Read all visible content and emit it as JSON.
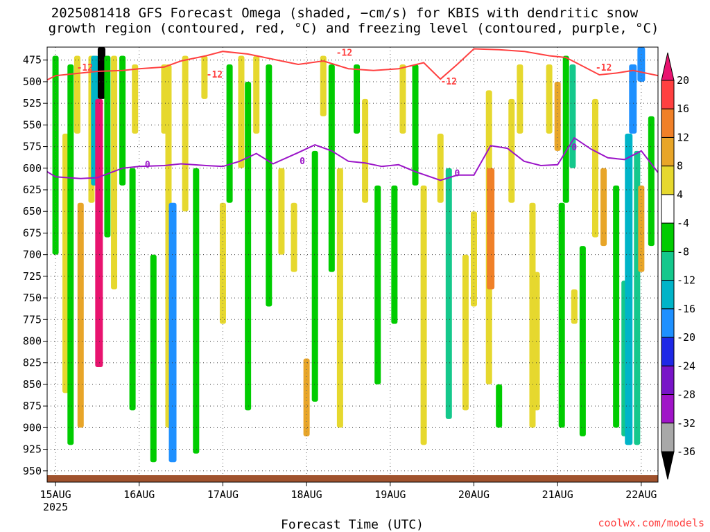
{
  "title": {
    "line1": "2025081418 GFS Forecast Omega (shaded, −cm/s) for KBIS with dendritic snow",
    "line2": "growth region (contoured, red, °C) and freezing level (contoured, purple, °C)"
  },
  "credit": "coolwx.com/models",
  "colors": {
    "red_contour": "#ff4040",
    "purple_contour": "#9b14c8",
    "ground": "#a0522d"
  },
  "chart_data": {
    "type": "heatmap",
    "xlabel": "Forecast Time (UTC)",
    "ylabel": "",
    "x_unit": "days since 2025-08-15 00 UTC",
    "xlim": [
      -0.1,
      7.2
    ],
    "y_scale": "reversed",
    "ylim": [
      460,
      963
    ],
    "x_ticks": [
      {
        "x": 0,
        "label": "15AUG",
        "sub": "2025"
      },
      {
        "x": 1,
        "label": "16AUG",
        "sub": ""
      },
      {
        "x": 2,
        "label": "17AUG",
        "sub": ""
      },
      {
        "x": 3,
        "label": "18AUG",
        "sub": ""
      },
      {
        "x": 4,
        "label": "19AUG",
        "sub": ""
      },
      {
        "x": 5,
        "label": "20AUG",
        "sub": ""
      },
      {
        "x": 6,
        "label": "21AUG",
        "sub": ""
      },
      {
        "x": 7,
        "label": "22AUG",
        "sub": ""
      }
    ],
    "y_ticks": [
      475,
      500,
      525,
      550,
      575,
      600,
      625,
      650,
      675,
      700,
      725,
      750,
      775,
      800,
      825,
      850,
      875,
      900,
      925,
      950
    ],
    "grid": true,
    "colorbar": {
      "ticks": [
        20,
        16,
        12,
        8,
        4,
        -4,
        -8,
        -12,
        -16,
        -20,
        -24,
        -28,
        -32,
        -36
      ],
      "bins": [
        {
          "from": 24,
          "to": 20,
          "color": "#e8136f"
        },
        {
          "from": 20,
          "to": 16,
          "color": "#ff4040"
        },
        {
          "from": 16,
          "to": 12,
          "color": "#f08028"
        },
        {
          "from": 12,
          "to": 8,
          "color": "#e8a528"
        },
        {
          "from": 8,
          "to": 4,
          "color": "#e6d82e"
        },
        {
          "from": 4,
          "to": -4,
          "color": "#ffffff"
        },
        {
          "from": -4,
          "to": -8,
          "color": "#00cc00"
        },
        {
          "from": -8,
          "to": -12,
          "color": "#14c88c"
        },
        {
          "from": -12,
          "to": -16,
          "color": "#00b4c8"
        },
        {
          "from": -16,
          "to": -20,
          "color": "#1e90ff"
        },
        {
          "from": -20,
          "to": -24,
          "color": "#1e28e6"
        },
        {
          "from": -24,
          "to": -28,
          "color": "#7814c8"
        },
        {
          "from": -28,
          "to": -32,
          "color": "#a014c8"
        },
        {
          "from": -32,
          "to": -36,
          "color": "#a8a8a8"
        },
        {
          "from": -36,
          "to": -40,
          "color": "#000000"
        }
      ]
    },
    "omega_streaks": [
      {
        "x": 0.0,
        "p0": 470,
        "p1": 700,
        "v": -6
      },
      {
        "x": 0.12,
        "p0": 560,
        "p1": 860,
        "v": 6
      },
      {
        "x": 0.18,
        "p0": 480,
        "p1": 920,
        "v": -6
      },
      {
        "x": 0.26,
        "p0": 470,
        "p1": 560,
        "v": 6
      },
      {
        "x": 0.3,
        "p0": 640,
        "p1": 900,
        "v": 10
      },
      {
        "x": 0.43,
        "p0": 470,
        "p1": 640,
        "v": 6
      },
      {
        "x": 0.47,
        "p0": 470,
        "p1": 620,
        "v": -14
      },
      {
        "x": 0.52,
        "p0": 520,
        "p1": 830,
        "v": 22
      },
      {
        "x": 0.55,
        "p0": 460,
        "p1": 520,
        "v": -38
      },
      {
        "x": 0.62,
        "p0": 470,
        "p1": 680,
        "v": -6
      },
      {
        "x": 0.7,
        "p0": 470,
        "p1": 740,
        "v": 6
      },
      {
        "x": 0.8,
        "p0": 470,
        "p1": 620,
        "v": -6
      },
      {
        "x": 0.92,
        "p0": 600,
        "p1": 880,
        "v": -6
      },
      {
        "x": 0.95,
        "p0": 480,
        "p1": 560,
        "v": 6
      },
      {
        "x": 1.17,
        "p0": 700,
        "p1": 940,
        "v": -6
      },
      {
        "x": 1.3,
        "p0": 480,
        "p1": 560,
        "v": 6
      },
      {
        "x": 1.35,
        "p0": 480,
        "p1": 900,
        "v": 6
      },
      {
        "x": 1.4,
        "p0": 640,
        "p1": 940,
        "v": -18
      },
      {
        "x": 1.55,
        "p0": 470,
        "p1": 650,
        "v": 6
      },
      {
        "x": 1.68,
        "p0": 600,
        "p1": 930,
        "v": -6
      },
      {
        "x": 1.78,
        "p0": 470,
        "p1": 520,
        "v": 6
      },
      {
        "x": 2.0,
        "p0": 640,
        "p1": 780,
        "v": 6
      },
      {
        "x": 2.08,
        "p0": 480,
        "p1": 640,
        "v": -6
      },
      {
        "x": 2.22,
        "p0": 470,
        "p1": 600,
        "v": 6
      },
      {
        "x": 2.3,
        "p0": 500,
        "p1": 880,
        "v": -6
      },
      {
        "x": 2.4,
        "p0": 470,
        "p1": 560,
        "v": 6
      },
      {
        "x": 2.55,
        "p0": 480,
        "p1": 760,
        "v": -6
      },
      {
        "x": 2.7,
        "p0": 600,
        "p1": 700,
        "v": 6
      },
      {
        "x": 2.85,
        "p0": 640,
        "p1": 720,
        "v": 6
      },
      {
        "x": 3.0,
        "p0": 820,
        "p1": 910,
        "v": 10
      },
      {
        "x": 3.1,
        "p0": 580,
        "p1": 870,
        "v": -6
      },
      {
        "x": 3.2,
        "p0": 470,
        "p1": 540,
        "v": 6
      },
      {
        "x": 3.3,
        "p0": 480,
        "p1": 720,
        "v": -6
      },
      {
        "x": 3.4,
        "p0": 600,
        "p1": 900,
        "v": 6
      },
      {
        "x": 3.6,
        "p0": 480,
        "p1": 560,
        "v": -6
      },
      {
        "x": 3.7,
        "p0": 520,
        "p1": 640,
        "v": 6
      },
      {
        "x": 3.85,
        "p0": 620,
        "p1": 850,
        "v": -6
      },
      {
        "x": 4.05,
        "p0": 620,
        "p1": 780,
        "v": -6
      },
      {
        "x": 4.15,
        "p0": 480,
        "p1": 560,
        "v": 6
      },
      {
        "x": 4.3,
        "p0": 480,
        "p1": 620,
        "v": -6
      },
      {
        "x": 4.4,
        "p0": 620,
        "p1": 920,
        "v": 6
      },
      {
        "x": 4.6,
        "p0": 560,
        "p1": 640,
        "v": 6
      },
      {
        "x": 4.7,
        "p0": 600,
        "p1": 890,
        "v": -10
      },
      {
        "x": 4.9,
        "p0": 700,
        "p1": 880,
        "v": 6
      },
      {
        "x": 5.0,
        "p0": 650,
        "p1": 760,
        "v": 6
      },
      {
        "x": 5.18,
        "p0": 510,
        "p1": 850,
        "v": 8
      },
      {
        "x": 5.2,
        "p0": 600,
        "p1": 740,
        "v": 14
      },
      {
        "x": 5.3,
        "p0": 850,
        "p1": 900,
        "v": -6
      },
      {
        "x": 5.45,
        "p0": 520,
        "p1": 640,
        "v": 6
      },
      {
        "x": 5.55,
        "p0": 480,
        "p1": 560,
        "v": 6
      },
      {
        "x": 5.7,
        "p0": 640,
        "p1": 900,
        "v": 6
      },
      {
        "x": 5.75,
        "p0": 720,
        "p1": 880,
        "v": 6
      },
      {
        "x": 5.9,
        "p0": 480,
        "p1": 560,
        "v": 6
      },
      {
        "x": 6.0,
        "p0": 500,
        "p1": 580,
        "v": 12
      },
      {
        "x": 6.05,
        "p0": 640,
        "p1": 900,
        "v": -6
      },
      {
        "x": 6.1,
        "p0": 470,
        "p1": 640,
        "v": -6
      },
      {
        "x": 6.18,
        "p0": 480,
        "p1": 600,
        "v": -10
      },
      {
        "x": 6.2,
        "p0": 740,
        "p1": 780,
        "v": 6
      },
      {
        "x": 6.3,
        "p0": 690,
        "p1": 910,
        "v": -6
      },
      {
        "x": 6.45,
        "p0": 520,
        "p1": 680,
        "v": 6
      },
      {
        "x": 6.55,
        "p0": 600,
        "p1": 690,
        "v": 10
      },
      {
        "x": 6.7,
        "p0": 620,
        "p1": 900,
        "v": -6
      },
      {
        "x": 6.8,
        "p0": 730,
        "p1": 910,
        "v": -10
      },
      {
        "x": 6.85,
        "p0": 560,
        "p1": 920,
        "v": -14
      },
      {
        "x": 6.9,
        "p0": 480,
        "p1": 560,
        "v": -18
      },
      {
        "x": 6.95,
        "p0": 580,
        "p1": 920,
        "v": -10
      },
      {
        "x": 7.0,
        "p0": 460,
        "p1": 500,
        "v": -18
      },
      {
        "x": 7.0,
        "p0": 620,
        "p1": 720,
        "v": 12
      },
      {
        "x": 7.12,
        "p0": 540,
        "p1": 690,
        "v": -6
      }
    ],
    "red_contour": {
      "level": -12,
      "x": [
        -0.1,
        0.0,
        0.3,
        0.5,
        0.8,
        1.0,
        1.3,
        1.5,
        1.8,
        2.0,
        2.3,
        2.6,
        2.9,
        3.2,
        3.5,
        3.8,
        4.1,
        4.4,
        4.6,
        4.8,
        5.0,
        5.3,
        5.6,
        5.9,
        6.1,
        6.3,
        6.5,
        6.7,
        6.9,
        7.2
      ],
      "y": [
        498,
        493,
        490,
        488,
        487,
        485,
        483,
        476,
        470,
        465,
        468,
        474,
        480,
        476,
        485,
        487,
        485,
        478,
        497,
        480,
        462,
        463,
        465,
        470,
        472,
        482,
        492,
        490,
        487,
        493
      ]
    },
    "purple_contour": {
      "level": 0,
      "x": [
        -0.1,
        0.0,
        0.3,
        0.5,
        0.8,
        1.0,
        1.3,
        1.5,
        1.8,
        2.0,
        2.2,
        2.4,
        2.6,
        2.9,
        3.1,
        3.3,
        3.5,
        3.7,
        3.9,
        4.1,
        4.3,
        4.6,
        4.8,
        5.0,
        5.2,
        5.4,
        5.6,
        5.8,
        6.0,
        6.2,
        6.4,
        6.6,
        6.8,
        7.0,
        7.2
      ],
      "y": [
        604,
        610,
        612,
        611,
        600,
        598,
        597,
        595,
        597,
        598,
        592,
        583,
        595,
        582,
        573,
        580,
        592,
        594,
        598,
        596,
        604,
        614,
        608,
        608,
        574,
        577,
        592,
        597,
        596,
        565,
        578,
        588,
        590,
        580,
        605
      ]
    },
    "contour_labels": [
      {
        "text": "-12",
        "x": 0.35,
        "p": 484,
        "series": "red"
      },
      {
        "text": "-12",
        "x": 1.9,
        "p": 492,
        "series": "red"
      },
      {
        "text": "-12",
        "x": 3.45,
        "p": 467,
        "series": "red"
      },
      {
        "text": "-12",
        "x": 4.7,
        "p": 500,
        "series": "red"
      },
      {
        "text": "-12",
        "x": 6.55,
        "p": 484,
        "series": "red"
      },
      {
        "text": "0",
        "x": 1.1,
        "p": 596,
        "series": "purple"
      },
      {
        "text": "0",
        "x": 2.95,
        "p": 592,
        "series": "purple"
      },
      {
        "text": "0",
        "x": 4.8,
        "p": 606,
        "series": "purple"
      },
      {
        "text": "0",
        "x": 6.2,
        "p": 576,
        "series": "purple"
      }
    ],
    "ground_level_p": 955
  }
}
